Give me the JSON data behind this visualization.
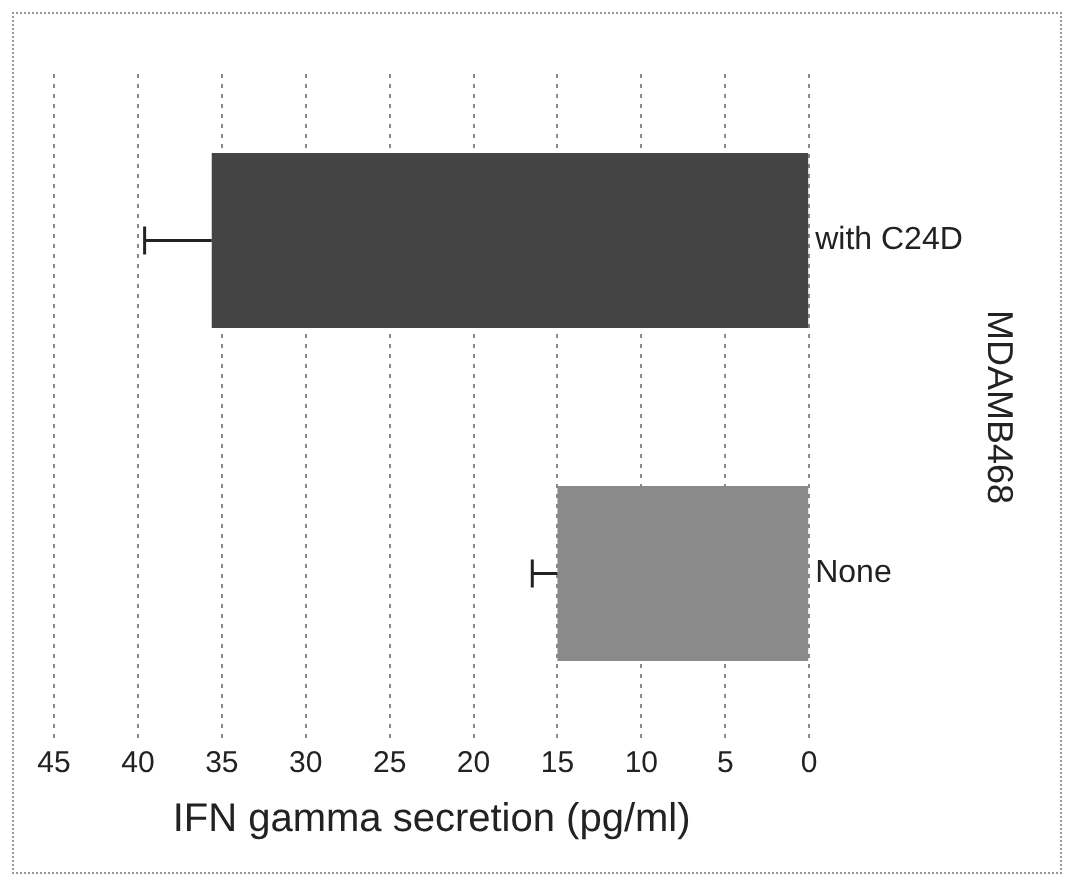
{
  "chart_data": {
    "type": "bar",
    "orientation": "horizontal",
    "xlabel": "IFN gamma secretion (pg/ml)",
    "ylabel": "MDAMB468",
    "categories": [
      "with C24D",
      "None"
    ],
    "values": [
      35.6,
      15.0
    ],
    "colors": [
      "#444444",
      "#8a8a8a"
    ],
    "errors": [
      [
        35.6,
        39.6
      ],
      [
        15.0,
        16.5
      ]
    ],
    "xlim": [
      45,
      0
    ],
    "xticks": [
      45,
      40,
      35,
      30,
      25,
      20,
      15,
      10,
      5,
      0
    ],
    "grid": "x"
  }
}
